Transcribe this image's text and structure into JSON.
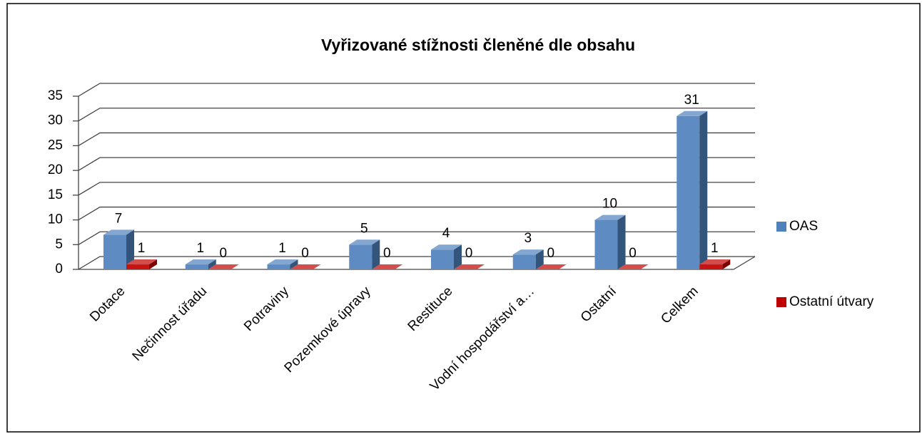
{
  "chart_data": {
    "type": "bar3d",
    "title": "Vyřizované stížnosti členěné dle obsahu",
    "categories": [
      "Dotace",
      "Nečinnost úřadu",
      "Potraviny",
      "Pozemkové úpravy",
      "Restituce",
      "Vodní hospodářství a…",
      "Ostatní",
      "Celkem"
    ],
    "series": [
      {
        "name": "OAS",
        "color": "#4f81bd",
        "values": [
          7,
          1,
          1,
          5,
          4,
          3,
          10,
          31
        ]
      },
      {
        "name": "Ostatní útvary",
        "color": "#c00000",
        "values": [
          1,
          0,
          0,
          0,
          0,
          0,
          0,
          1
        ]
      }
    ],
    "ylim": [
      0,
      35
    ],
    "yticks": [
      0,
      5,
      10,
      15,
      20,
      25,
      30,
      35
    ],
    "grid": true,
    "legend": "right"
  }
}
